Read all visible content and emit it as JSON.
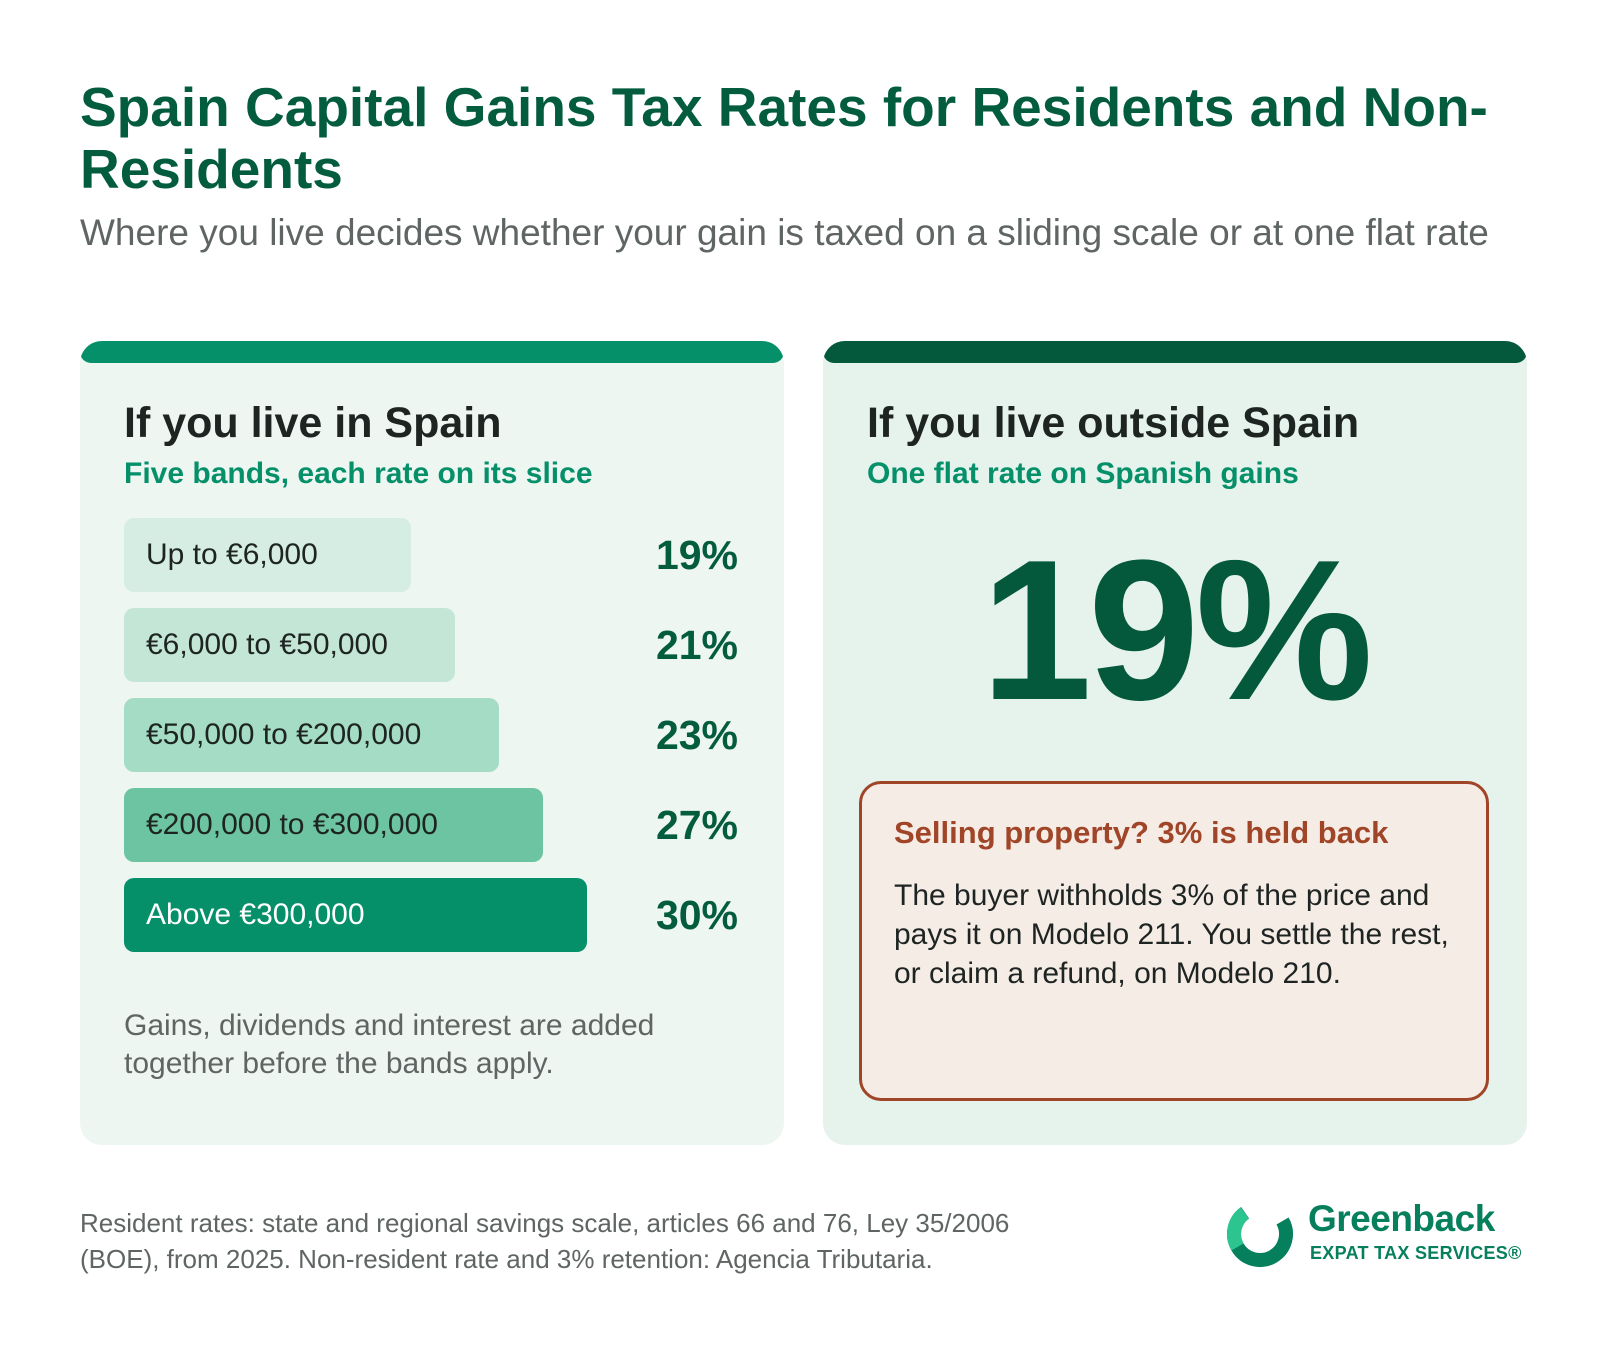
{
  "header": {
    "title": "Spain Capital Gains Tax Rates for Residents and Non-Residents",
    "subtitle": "Where you live decides whether your gain is taxed on a sliding scale or at one flat rate"
  },
  "residents": {
    "heading": "If you live in Spain",
    "subheading": "Five bands, each rate on its slice",
    "bands": [
      {
        "label": "Up to €6,000",
        "rate": "19%"
      },
      {
        "label": "€6,000 to €50,000",
        "rate": "21%"
      },
      {
        "label": "€50,000 to €200,000",
        "rate": "23%"
      },
      {
        "label": "€200,000 to €300,000",
        "rate": "27%"
      },
      {
        "label": "Above €300,000",
        "rate": "30%"
      }
    ],
    "note": "Gains, dividends and interest are added together before the bands apply."
  },
  "non_residents": {
    "heading": "If you live outside Spain",
    "subheading": "One flat rate on Spanish gains",
    "flat_rate": "19%",
    "callout": {
      "heading": "Selling property? 3% is held back",
      "body": "The buyer withholds 3% of the price and pays it on Modelo 211. You settle the rest, or claim a refund, on Modelo 210."
    }
  },
  "footer": {
    "source": "Resident rates: state and regional savings scale, articles 66 and 76, Ley 35/2006 (BOE), from 2025. Non-resident rate and 3% retention: Agencia Tributaria.",
    "brand_name": "Greenback",
    "brand_tagline": "EXPAT TAX SERVICES®"
  },
  "colors": {
    "title_green": "#045c3e",
    "accent_green": "#06906a",
    "dark_green": "#04583c",
    "callout_border": "#a04528",
    "callout_bg": "#f6ece6",
    "band_shades": [
      "#d6ede3",
      "#c3e6d7",
      "#a5dcc5",
      "#6cc4a2",
      "#06906a"
    ]
  }
}
